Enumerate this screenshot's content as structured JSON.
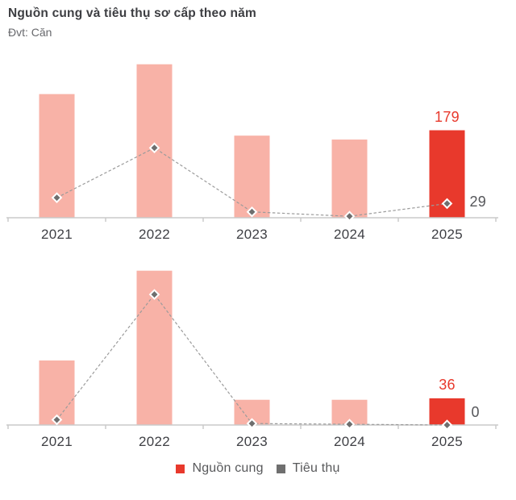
{
  "header": {
    "title": "Nguồn cung và tiêu thụ sơ cấp theo năm",
    "unit_label": "Đvt: Căn"
  },
  "colors": {
    "bar": "#F8B2A7",
    "bar_highlight": "#E8392C",
    "marker": "#6E6E6E",
    "marker_border": "#FFFFFF",
    "dash_line": "#9B9B9B",
    "axis": "#CACACA",
    "category_label": "#3F4045",
    "supply_value_label": "#E8392C",
    "consumption_value_label": "#55565A",
    "title": "#3D3E42",
    "subtitle": "#67686C"
  },
  "legend": {
    "items": [
      {
        "label": "Nguồn cung",
        "color": "#E8392C"
      },
      {
        "label": "Tiêu thụ",
        "color": "#6F6F6F"
      }
    ]
  },
  "chart_data": [
    {
      "position": "top",
      "type": "bar",
      "unit": "Căn",
      "categories": [
        "2021",
        "2022",
        "2023",
        "2024",
        "2025"
      ],
      "series": [
        {
          "name": "Nguồn cung",
          "type": "bar",
          "values": [
            253,
            314,
            168,
            160,
            179
          ]
        },
        {
          "name": "Tiêu thụ",
          "type": "line",
          "values": [
            41,
            143,
            12,
            3,
            29
          ]
        }
      ],
      "ylim": [
        0,
        330
      ],
      "grid": false,
      "highlight_category": "2025",
      "value_labels": {
        "supply": "179",
        "consumption": "29"
      },
      "note": "only 2025 values labeled on chart; other values estimated from bar/marker heights"
    },
    {
      "position": "bottom",
      "type": "bar",
      "unit": "Căn",
      "categories": [
        "2021",
        "2022",
        "2023",
        "2024",
        "2025"
      ],
      "series": [
        {
          "name": "Nguồn cung",
          "type": "bar",
          "values": [
            87,
            208,
            34,
            34,
            36
          ]
        },
        {
          "name": "Tiêu thụ",
          "type": "line",
          "values": [
            7,
            176,
            2,
            1,
            0
          ]
        }
      ],
      "ylim": [
        0,
        212
      ],
      "grid": false,
      "highlight_category": "2025",
      "value_labels": {
        "supply": "36",
        "consumption": "0"
      },
      "note": "only 2025 values labeled on chart; other values estimated from bar/marker heights"
    }
  ]
}
